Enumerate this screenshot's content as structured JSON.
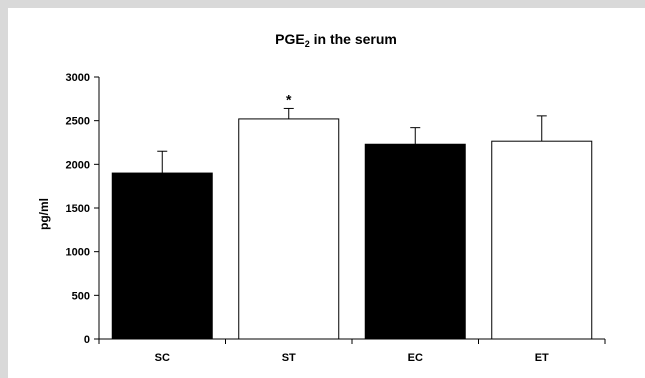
{
  "chart_data": {
    "type": "bar",
    "title": {
      "main": "PGE",
      "sub": "2",
      "rest": " in the serum"
    },
    "ylabel": "pg/ml",
    "xlabel": "",
    "ylim": [
      0,
      3000
    ],
    "yticks": [
      0,
      500,
      1000,
      1500,
      2000,
      2500,
      3000
    ],
    "categories": [
      "SC",
      "ST",
      "EC",
      "ET"
    ],
    "values": [
      1900,
      2520,
      2230,
      2265
    ],
    "errors": [
      250,
      120,
      190,
      290
    ],
    "fills": [
      "#000000",
      "#ffffff",
      "#000000",
      "#ffffff"
    ],
    "annotations": [
      "",
      "*",
      "",
      ""
    ],
    "grid": false,
    "legend": "none"
  }
}
